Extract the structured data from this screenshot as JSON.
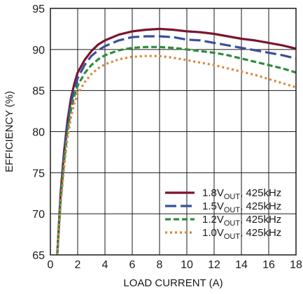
{
  "chart_data": {
    "type": "line",
    "xlabel": "LOAD CURRENT (A)",
    "ylabel": "EFFICIENCY (%)",
    "xlim": [
      0,
      18
    ],
    "ylim": [
      65,
      95
    ],
    "xticks": [
      0,
      2,
      4,
      6,
      8,
      10,
      12,
      14,
      16,
      18
    ],
    "yticks": [
      65,
      70,
      75,
      80,
      85,
      90,
      95
    ],
    "grid": true,
    "legend_position": "bottom-right",
    "series": [
      {
        "name": "1.8VOUT, 425kHz",
        "label_main": "1.8V",
        "label_sub": "OUT",
        "label_tail": ", 425kHz",
        "color": "#7a1530",
        "dash": "solid",
        "x": [
          0.5,
          0.75,
          1,
          1.25,
          1.5,
          1.75,
          2,
          2.5,
          3,
          3.5,
          4,
          5,
          6,
          7,
          8,
          9,
          10,
          11,
          12,
          13,
          14,
          15,
          16,
          17,
          18
        ],
        "y": [
          65,
          72.5,
          77.5,
          81.3,
          84,
          85.8,
          87.2,
          88.7,
          89.8,
          90.6,
          91.1,
          91.8,
          92.2,
          92.4,
          92.5,
          92.4,
          92.2,
          92.1,
          91.9,
          91.6,
          91.3,
          91.1,
          90.8,
          90.5,
          90.1
        ]
      },
      {
        "name": "1.5VOUT, 425kHz",
        "label_main": "1.5V",
        "label_sub": "OUT",
        "label_tail": ", 425kHz",
        "color": "#3a4f9b",
        "dash": "long",
        "x": [
          0.5,
          0.75,
          1,
          1.25,
          1.5,
          1.75,
          2,
          2.5,
          3,
          3.5,
          4,
          5,
          6,
          7,
          8,
          9,
          10,
          11,
          12,
          13,
          14,
          15,
          16,
          17,
          18
        ],
        "y": [
          65,
          72,
          77,
          80.8,
          83.4,
          85.1,
          86.5,
          88.1,
          89.2,
          89.9,
          90.4,
          91.1,
          91.5,
          91.6,
          91.6,
          91.5,
          91.2,
          91.1,
          90.8,
          90.5,
          90.2,
          89.9,
          89.6,
          89.3,
          88.9
        ]
      },
      {
        "name": "1.2VOUT, 425kHz",
        "label_main": "1.2V",
        "label_sub": "OUT",
        "label_tail": ", 425kHz",
        "color": "#2e8b3e",
        "dash": "medium",
        "x": [
          0.5,
          0.75,
          1,
          1.25,
          1.5,
          1.75,
          2,
          2.5,
          3,
          3.5,
          4,
          5,
          6,
          7,
          8,
          9,
          10,
          11,
          12,
          13,
          14,
          15,
          16,
          17,
          18
        ],
        "y": [
          65,
          71.5,
          76.3,
          80,
          82.6,
          84.3,
          85.6,
          87.1,
          88.1,
          88.8,
          89.3,
          89.9,
          90.2,
          90.3,
          90.3,
          90.2,
          90,
          89.8,
          89.6,
          89.3,
          88.9,
          88.5,
          88.1,
          87.7,
          87.2
        ]
      },
      {
        "name": "1.0VOUT, 425kHz",
        "label_main": "1.0V",
        "label_sub": "OUT",
        "label_tail": ", 425kHz",
        "color": "#d9873a",
        "dash": "dot",
        "x": [
          0.5,
          0.75,
          1,
          1.25,
          1.5,
          1.75,
          2,
          2.5,
          3,
          3.5,
          4,
          5,
          6,
          7,
          8,
          9,
          10,
          11,
          12,
          13,
          14,
          15,
          16,
          17,
          18
        ],
        "y": [
          65,
          71,
          75.6,
          79.2,
          81.7,
          83.4,
          84.6,
          86,
          87,
          87.7,
          88.2,
          88.8,
          89.1,
          89.2,
          89.2,
          89,
          88.7,
          88.4,
          88.1,
          87.7,
          87.3,
          86.9,
          86.4,
          85.9,
          85.4
        ]
      }
    ]
  }
}
